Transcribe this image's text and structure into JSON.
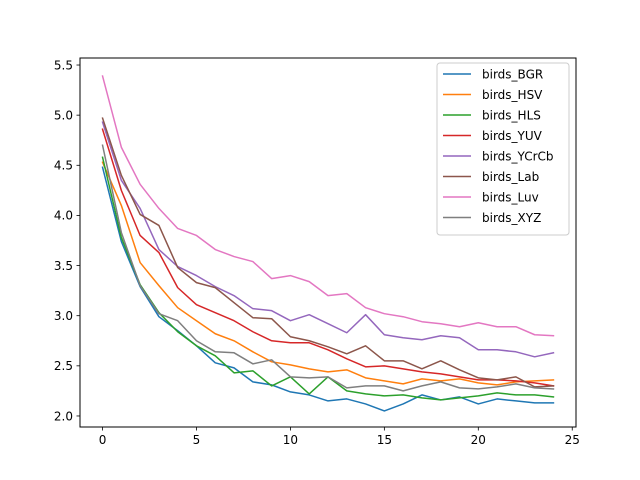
{
  "chart_data": {
    "type": "line",
    "title": "",
    "xlabel": "",
    "ylabel": "",
    "xlim": [
      -1.2,
      25.2
    ],
    "ylim": [
      1.89,
      5.57
    ],
    "xticks": [
      0,
      5,
      10,
      15,
      20,
      25
    ],
    "yticks": [
      2.0,
      2.5,
      3.0,
      3.5,
      4.0,
      4.5,
      5.0,
      5.5
    ],
    "xtick_labels": [
      "0",
      "5",
      "10",
      "15",
      "20",
      "25"
    ],
    "ytick_labels": [
      "2.0",
      "2.5",
      "3.0",
      "3.5",
      "4.0",
      "4.5",
      "5.0",
      "5.5"
    ],
    "grid": false,
    "legend_position": "top-right",
    "x": [
      0,
      1,
      2,
      3,
      4,
      5,
      6,
      7,
      8,
      9,
      10,
      11,
      12,
      13,
      14,
      15,
      16,
      17,
      18,
      19,
      20,
      21,
      22,
      23,
      24
    ],
    "series": [
      {
        "name": "birds_BGR",
        "color": "#1f77b4",
        "values": [
          4.48,
          3.74,
          3.29,
          2.99,
          2.85,
          2.7,
          2.53,
          2.48,
          2.34,
          2.31,
          2.24,
          2.21,
          2.15,
          2.17,
          2.12,
          2.05,
          2.12,
          2.21,
          2.16,
          2.19,
          2.12,
          2.17,
          2.15,
          2.13,
          2.13
        ]
      },
      {
        "name": "birds_HSV",
        "color": "#ff7f0e",
        "values": [
          4.53,
          4.1,
          3.53,
          3.3,
          3.08,
          2.95,
          2.82,
          2.75,
          2.64,
          2.54,
          2.51,
          2.47,
          2.44,
          2.46,
          2.38,
          2.35,
          2.32,
          2.37,
          2.35,
          2.37,
          2.33,
          2.31,
          2.34,
          2.35,
          2.36
        ]
      },
      {
        "name": "birds_HLS",
        "color": "#2ca02c",
        "values": [
          4.58,
          3.78,
          3.31,
          3.03,
          2.84,
          2.7,
          2.6,
          2.43,
          2.45,
          2.3,
          2.39,
          2.22,
          2.39,
          2.25,
          2.22,
          2.2,
          2.21,
          2.18,
          2.16,
          2.18,
          2.2,
          2.23,
          2.21,
          2.21,
          2.19
        ]
      },
      {
        "name": "birds_YUV",
        "color": "#d62728",
        "values": [
          4.86,
          4.25,
          3.8,
          3.63,
          3.28,
          3.11,
          3.03,
          2.95,
          2.84,
          2.75,
          2.73,
          2.73,
          2.66,
          2.57,
          2.49,
          2.5,
          2.47,
          2.44,
          2.42,
          2.39,
          2.36,
          2.36,
          2.35,
          2.33,
          2.3
        ]
      },
      {
        "name": "birds_YCrCb",
        "color": "#9467bd",
        "values": [
          4.93,
          4.35,
          4.07,
          3.66,
          3.49,
          3.4,
          3.29,
          3.2,
          3.07,
          3.05,
          2.95,
          3.01,
          2.92,
          2.83,
          3.01,
          2.81,
          2.78,
          2.76,
          2.8,
          2.78,
          2.66,
          2.66,
          2.64,
          2.59,
          2.63
        ]
      },
      {
        "name": "birds_Lab",
        "color": "#8c564b",
        "values": [
          4.97,
          4.4,
          4.01,
          3.9,
          3.48,
          3.33,
          3.28,
          3.13,
          2.98,
          2.97,
          2.79,
          2.75,
          2.69,
          2.62,
          2.7,
          2.55,
          2.55,
          2.47,
          2.55,
          2.46,
          2.38,
          2.36,
          2.39,
          2.29,
          2.3
        ]
      },
      {
        "name": "birds_Luv",
        "color": "#e377c2",
        "values": [
          5.39,
          4.68,
          4.31,
          4.07,
          3.87,
          3.8,
          3.66,
          3.59,
          3.54,
          3.37,
          3.4,
          3.34,
          3.2,
          3.22,
          3.08,
          3.02,
          2.99,
          2.94,
          2.92,
          2.89,
          2.93,
          2.89,
          2.89,
          2.81,
          2.8
        ]
      },
      {
        "name": "birds_XYZ",
        "color": "#7f7f7f",
        "values": [
          4.7,
          3.83,
          3.3,
          3.02,
          2.95,
          2.75,
          2.64,
          2.63,
          2.52,
          2.56,
          2.39,
          2.38,
          2.39,
          2.28,
          2.3,
          2.3,
          2.25,
          2.3,
          2.34,
          2.28,
          2.27,
          2.29,
          2.32,
          2.28,
          2.27
        ]
      }
    ]
  }
}
